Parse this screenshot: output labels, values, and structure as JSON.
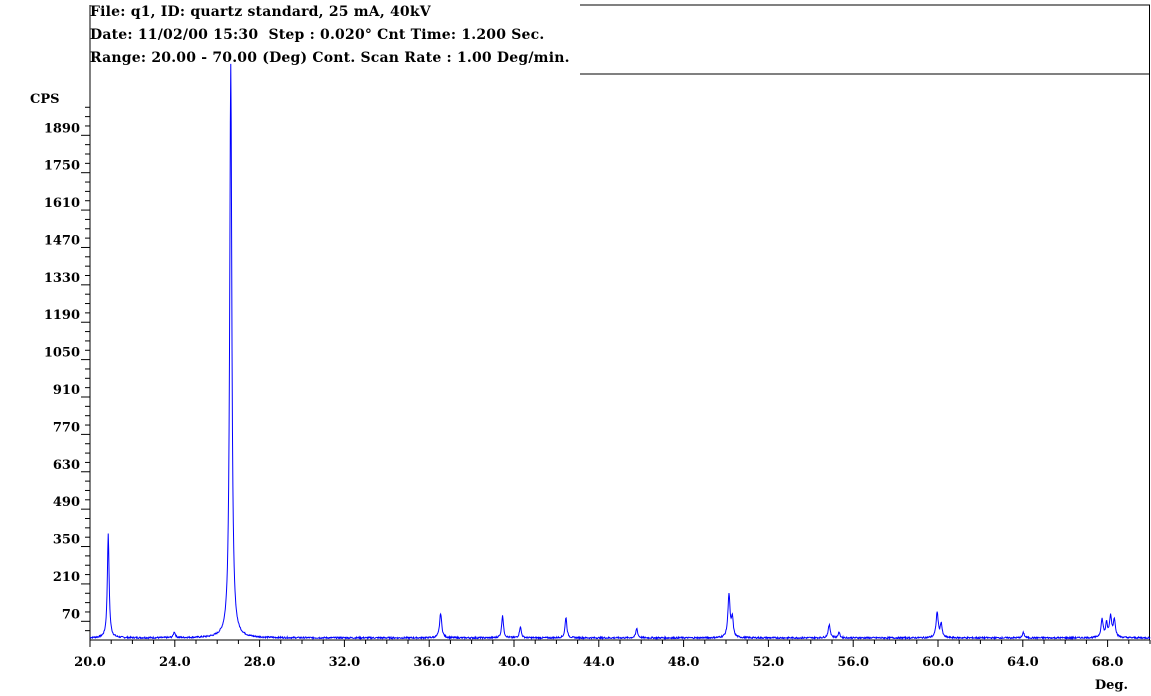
{
  "header": {
    "line1": "File: q1, ID: quartz standard, 25 mA, 40kV",
    "line2": "Date: 11/02/00 15:30  Step : 0.020° Cnt Time: 1.200 Sec.",
    "line3": "Range: 20.00 - 70.00 (Deg) Cont. Scan Rate : 1.00 Deg/min."
  },
  "colors": {
    "trace": "#0000ff",
    "axis": "#000000",
    "background": "#ffffff"
  },
  "chart_data": {
    "type": "line",
    "title": "",
    "xlabel": "Deg.",
    "ylabel": "CPS",
    "xlim": [
      20.0,
      70.0
    ],
    "ylim": [
      0,
      2000
    ],
    "x_ticks": [
      "20.0",
      "24.0",
      "28.0",
      "32.0",
      "36.0",
      "40.0",
      "44.0",
      "48.0",
      "52.0",
      "56.0",
      "60.0",
      "64.0",
      "68.0"
    ],
    "y_ticks": [
      "70",
      "210",
      "350",
      "490",
      "630",
      "770",
      "910",
      "1050",
      "1190",
      "1330",
      "1470",
      "1610",
      "1750",
      "1890"
    ],
    "baseline": 8,
    "series": [
      {
        "color": "#0000ff",
        "peaks": [
          {
            "x": 20.86,
            "y": 388,
            "w": 0.05
          },
          {
            "x": 23.98,
            "y": 22,
            "w": 0.05
          },
          {
            "x": 26.64,
            "y": 2150,
            "w": 0.06
          },
          {
            "x": 36.54,
            "y": 92,
            "w": 0.06
          },
          {
            "x": 39.46,
            "y": 85,
            "w": 0.05
          },
          {
            "x": 40.3,
            "y": 42,
            "w": 0.05
          },
          {
            "x": 42.45,
            "y": 78,
            "w": 0.05
          },
          {
            "x": 45.79,
            "y": 36,
            "w": 0.05
          },
          {
            "x": 50.14,
            "y": 162,
            "w": 0.06
          },
          {
            "x": 50.3,
            "y": 70,
            "w": 0.05
          },
          {
            "x": 54.87,
            "y": 48,
            "w": 0.06
          },
          {
            "x": 55.33,
            "y": 20,
            "w": 0.05
          },
          {
            "x": 59.96,
            "y": 95,
            "w": 0.06
          },
          {
            "x": 60.15,
            "y": 52,
            "w": 0.05
          },
          {
            "x": 64.03,
            "y": 20,
            "w": 0.05
          },
          {
            "x": 67.74,
            "y": 68,
            "w": 0.06
          },
          {
            "x": 67.95,
            "y": 50,
            "w": 0.05
          },
          {
            "x": 68.14,
            "y": 78,
            "w": 0.06
          },
          {
            "x": 68.32,
            "y": 66,
            "w": 0.06
          }
        ]
      }
    ]
  }
}
